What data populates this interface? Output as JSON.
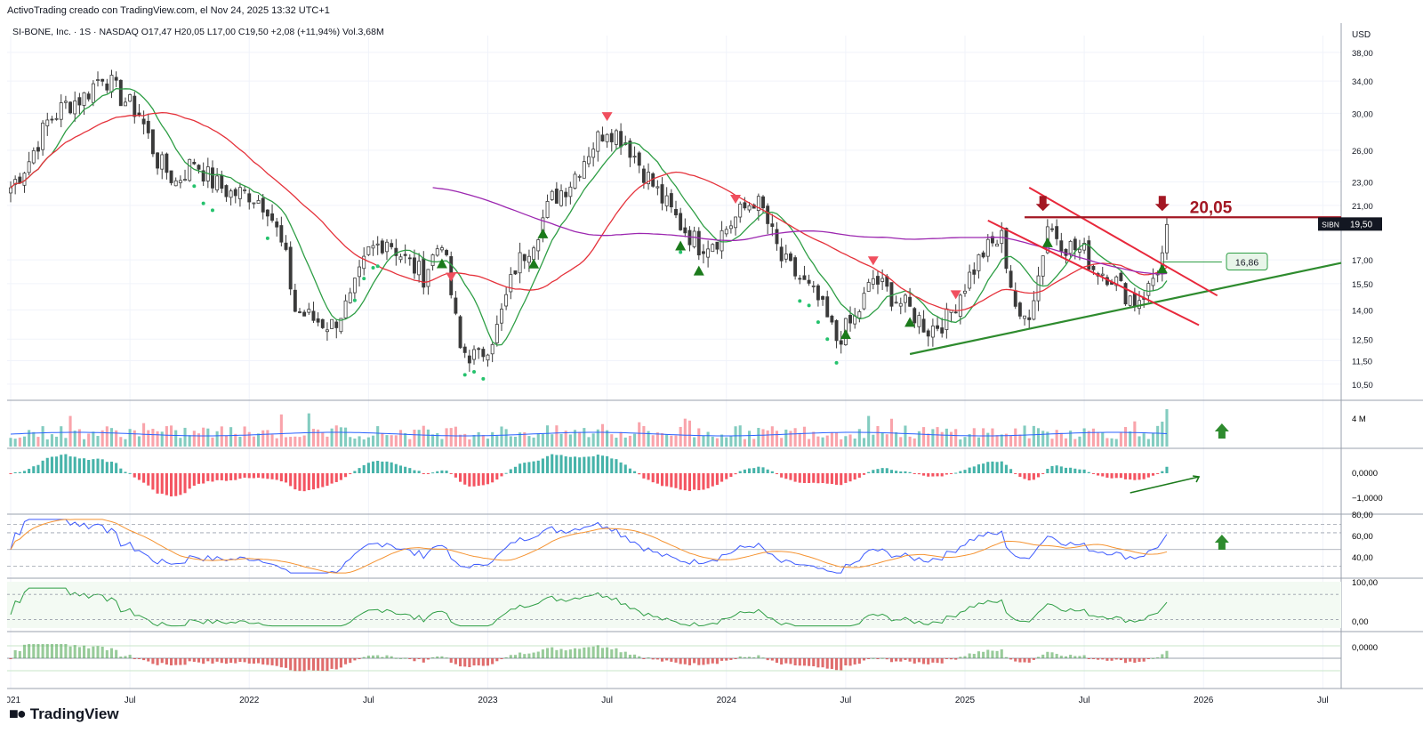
{
  "header": {
    "caption": "ActivoTrading creado con TradingView.com, el Nov 24, 2025 13:32 UTC+1",
    "legend": "SI-BONE, Inc. · 1S · NASDAQ  O17,47  H20,05  L17,00  C19,50  +2,08 (+11,94%)  Vol.3,68M"
  },
  "axis": {
    "currency": "USD",
    "price_ticks": [
      {
        "v": 38.0,
        "label": "38,00"
      },
      {
        "v": 34.0,
        "label": "34,00"
      },
      {
        "v": 30.0,
        "label": "30,00"
      },
      {
        "v": 26.0,
        "label": "26,00"
      },
      {
        "v": 23.0,
        "label": "23,00"
      },
      {
        "v": 21.0,
        "label": "21,00"
      },
      {
        "v": 17.0,
        "label": "17,00"
      },
      {
        "v": 15.5,
        "label": "15,50"
      },
      {
        "v": 14.0,
        "label": "14,00"
      },
      {
        "v": 12.5,
        "label": "12,50"
      },
      {
        "v": 11.5,
        "label": "11,50"
      },
      {
        "v": 10.5,
        "label": "10,50"
      }
    ],
    "time_labels": [
      "2021",
      "Jul",
      "2022",
      "Jul",
      "2023",
      "Jul",
      "2024",
      "Jul",
      "2025",
      "Jul",
      "2026",
      "Jul"
    ],
    "time_label_t": [
      0,
      26,
      52,
      78,
      104,
      130,
      156,
      182,
      208,
      234,
      260,
      286
    ],
    "volume_label": "4 M",
    "macd_labels": [
      "0,0000",
      "−1,0000"
    ],
    "rsi_labels": [
      "80,00",
      "60,00",
      "40,00"
    ],
    "stoch_labels": [
      "100,00",
      "0,00"
    ],
    "last_pane_label": "0,0000"
  },
  "annotations": {
    "resistance_label": "20,05",
    "ticker_badge": "SIBN",
    "last_price_badge": "19,50",
    "level_badge": "16,86"
  },
  "colors": {
    "bull": "#089981",
    "bear": "#f23645",
    "ma_fast": "#2e9e45",
    "ma_slow": "#e5323b",
    "ma_long": "#9c27b0",
    "resistance": "#a31723",
    "channel": "#e8283b",
    "support": "#2e8b2e"
  },
  "chart_data": {
    "type": "candlestick",
    "title": "SI-BONE, Inc. · 1S · NASDAQ",
    "interval": "1S (weekly)",
    "x_range": [
      "2020-12",
      "2026-10"
    ],
    "y_scale": "log",
    "ylim": [
      10.0,
      40.0
    ],
    "anchors_close": [
      [
        0,
        22.5
      ],
      [
        4,
        25
      ],
      [
        8,
        29
      ],
      [
        12,
        31
      ],
      [
        16,
        32
      ],
      [
        20,
        35
      ],
      [
        24,
        32
      ],
      [
        28,
        30
      ],
      [
        32,
        25
      ],
      [
        36,
        23
      ],
      [
        40,
        25
      ],
      [
        44,
        23
      ],
      [
        48,
        22
      ],
      [
        52,
        22
      ],
      [
        56,
        21
      ],
      [
        58,
        19
      ],
      [
        60,
        17
      ],
      [
        62,
        14
      ],
      [
        66,
        13.5
      ],
      [
        70,
        13.2
      ],
      [
        74,
        14.5
      ],
      [
        78,
        17.5
      ],
      [
        82,
        18.5
      ],
      [
        86,
        17
      ],
      [
        90,
        16
      ],
      [
        94,
        18.5
      ],
      [
        98,
        12
      ],
      [
        102,
        11.6
      ],
      [
        106,
        13
      ],
      [
        110,
        16.5
      ],
      [
        114,
        18.5
      ],
      [
        118,
        21.5
      ],
      [
        122,
        23
      ],
      [
        126,
        26
      ],
      [
        130,
        28.5
      ],
      [
        134,
        27
      ],
      [
        138,
        24
      ],
      [
        142,
        21.5
      ],
      [
        146,
        19.5
      ],
      [
        150,
        18
      ],
      [
        154,
        18.5
      ],
      [
        158,
        20
      ],
      [
        162,
        21.5
      ],
      [
        164,
        20.5
      ],
      [
        168,
        17
      ],
      [
        172,
        15.8
      ],
      [
        176,
        14.5
      ],
      [
        180,
        12.5
      ],
      [
        184,
        13.5
      ],
      [
        188,
        15.8
      ],
      [
        192,
        14.8
      ],
      [
        196,
        14
      ],
      [
        200,
        13
      ],
      [
        204,
        13.5
      ],
      [
        208,
        15.5
      ],
      [
        212,
        17.5
      ],
      [
        216,
        18.5
      ],
      [
        218,
        15.5
      ],
      [
        220,
        13.2
      ],
      [
        222,
        14
      ],
      [
        224,
        16
      ],
      [
        226,
        19.5
      ],
      [
        230,
        18
      ],
      [
        234,
        17.5
      ],
      [
        236,
        16.5
      ],
      [
        240,
        16
      ],
      [
        242,
        15.2
      ],
      [
        245,
        14.5
      ],
      [
        248,
        15.2
      ],
      [
        250,
        16.5
      ],
      [
        251,
        17.47
      ],
      [
        252,
        19.5
      ]
    ],
    "last_bar": {
      "open": 17.47,
      "high": 20.05,
      "low": 17.0,
      "close": 19.5,
      "change": "+2,08 (+11,94%)",
      "volume": "3,68M"
    },
    "resistance_level": 20.05,
    "marked_level": 16.86,
    "series": [
      {
        "type": "sma",
        "color": "#2e9e45"
      },
      {
        "type": "sma",
        "color": "#e5323b"
      },
      {
        "type": "sma",
        "color": "#9c27b0"
      }
    ]
  }
}
